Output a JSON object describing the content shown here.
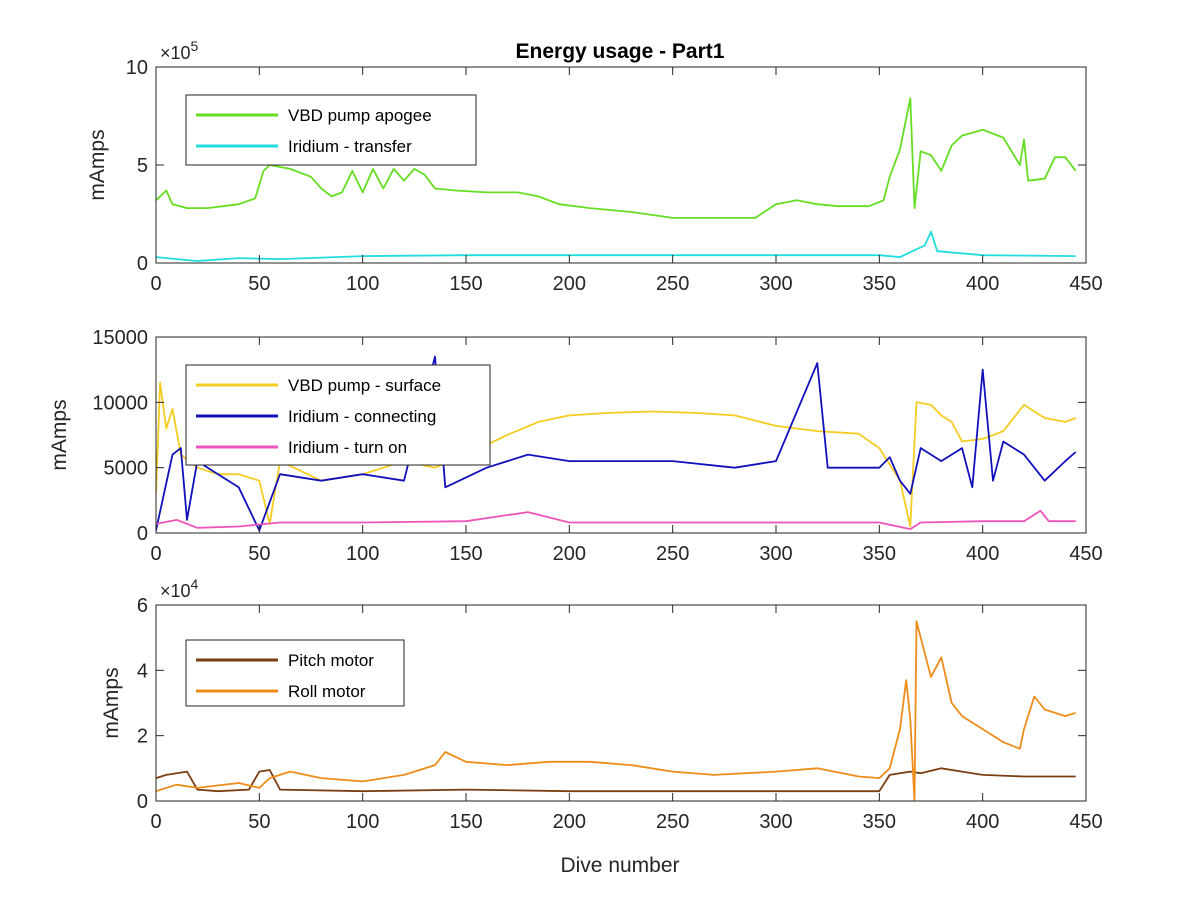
{
  "chart_data": [
    {
      "type": "line",
      "title": "Energy usage - Part1",
      "xlabel": "",
      "ylabel": "mAmps",
      "xlim": [
        0,
        450
      ],
      "ylim": [
        0,
        1000000
      ],
      "xticks": [
        0,
        50,
        100,
        150,
        200,
        250,
        300,
        350,
        400,
        450
      ],
      "yticks": [
        0,
        500000,
        1000000
      ],
      "ytick_labels": [
        "0",
        "5",
        "10"
      ],
      "exponent_label": "×10^5",
      "exponent_base": "×10",
      "exponent_power": "5",
      "legend_position": "top-left",
      "series": [
        {
          "name": "VBD pump apogee",
          "color": "#66dd22",
          "points": [
            [
              0,
              320000
            ],
            [
              5,
              370000
            ],
            [
              8,
              300000
            ],
            [
              15,
              280000
            ],
            [
              25,
              280000
            ],
            [
              40,
              300000
            ],
            [
              48,
              330000
            ],
            [
              52,
              470000
            ],
            [
              55,
              500000
            ],
            [
              65,
              480000
            ],
            [
              75,
              440000
            ],
            [
              80,
              380000
            ],
            [
              85,
              340000
            ],
            [
              90,
              360000
            ],
            [
              95,
              470000
            ],
            [
              100,
              360000
            ],
            [
              105,
              480000
            ],
            [
              110,
              380000
            ],
            [
              115,
              480000
            ],
            [
              120,
              420000
            ],
            [
              125,
              480000
            ],
            [
              130,
              450000
            ],
            [
              135,
              380000
            ],
            [
              145,
              370000
            ],
            [
              160,
              360000
            ],
            [
              175,
              360000
            ],
            [
              185,
              340000
            ],
            [
              195,
              300000
            ],
            [
              210,
              280000
            ],
            [
              230,
              260000
            ],
            [
              250,
              230000
            ],
            [
              270,
              230000
            ],
            [
              290,
              230000
            ],
            [
              300,
              300000
            ],
            [
              310,
              320000
            ],
            [
              320,
              300000
            ],
            [
              330,
              290000
            ],
            [
              345,
              290000
            ],
            [
              352,
              320000
            ],
            [
              355,
              440000
            ],
            [
              360,
              580000
            ],
            [
              365,
              840000
            ],
            [
              367,
              280000
            ],
            [
              370,
              570000
            ],
            [
              375,
              550000
            ],
            [
              380,
              470000
            ],
            [
              385,
              600000
            ],
            [
              390,
              650000
            ],
            [
              400,
              680000
            ],
            [
              410,
              640000
            ],
            [
              418,
              500000
            ],
            [
              420,
              630000
            ],
            [
              422,
              420000
            ],
            [
              430,
              430000
            ],
            [
              435,
              540000
            ],
            [
              440,
              540000
            ],
            [
              445,
              470000
            ]
          ]
        },
        {
          "name": "Iridium - transfer",
          "color": "#22dddd",
          "points": [
            [
              0,
              30000
            ],
            [
              10,
              20000
            ],
            [
              20,
              10000
            ],
            [
              40,
              25000
            ],
            [
              60,
              20000
            ],
            [
              100,
              35000
            ],
            [
              150,
              40000
            ],
            [
              200,
              40000
            ],
            [
              250,
              40000
            ],
            [
              300,
              40000
            ],
            [
              350,
              40000
            ],
            [
              360,
              30000
            ],
            [
              368,
              70000
            ],
            [
              372,
              90000
            ],
            [
              375,
              160000
            ],
            [
              378,
              60000
            ],
            [
              400,
              40000
            ],
            [
              445,
              35000
            ]
          ]
        }
      ]
    },
    {
      "type": "line",
      "title": "",
      "xlabel": "",
      "ylabel": "mAmps",
      "xlim": [
        0,
        450
      ],
      "ylim": [
        0,
        15000
      ],
      "xticks": [
        0,
        50,
        100,
        150,
        200,
        250,
        300,
        350,
        400,
        450
      ],
      "yticks": [
        0,
        5000,
        10000,
        15000
      ],
      "ytick_labels": [
        "0",
        "5000",
        "10000",
        "15000"
      ],
      "legend_position": "top-left",
      "series": [
        {
          "name": "VBD pump - surface",
          "color": "#f5cc22",
          "points": [
            [
              0,
              3000
            ],
            [
              2,
              11500
            ],
            [
              5,
              8000
            ],
            [
              8,
              9500
            ],
            [
              12,
              6000
            ],
            [
              20,
              5000
            ],
            [
              30,
              4500
            ],
            [
              40,
              4500
            ],
            [
              50,
              4000
            ],
            [
              55,
              700
            ],
            [
              60,
              5500
            ],
            [
              80,
              4000
            ],
            [
              100,
              4500
            ],
            [
              120,
              5500
            ],
            [
              135,
              5000
            ],
            [
              150,
              6000
            ],
            [
              170,
              7500
            ],
            [
              185,
              8500
            ],
            [
              200,
              9000
            ],
            [
              220,
              9200
            ],
            [
              240,
              9300
            ],
            [
              260,
              9200
            ],
            [
              280,
              9000
            ],
            [
              300,
              8200
            ],
            [
              320,
              7800
            ],
            [
              340,
              7600
            ],
            [
              350,
              6500
            ],
            [
              360,
              4000
            ],
            [
              365,
              500
            ],
            [
              368,
              10000
            ],
            [
              375,
              9800
            ],
            [
              380,
              9000
            ],
            [
              385,
              8500
            ],
            [
              390,
              7000
            ],
            [
              400,
              7200
            ],
            [
              410,
              7800
            ],
            [
              420,
              9800
            ],
            [
              430,
              8800
            ],
            [
              440,
              8500
            ],
            [
              445,
              8800
            ]
          ]
        },
        {
          "name": "Iridium - connecting",
          "color": "#1111bb",
          "points": [
            [
              0,
              200
            ],
            [
              8,
              6000
            ],
            [
              12,
              6500
            ],
            [
              15,
              1000
            ],
            [
              20,
              5500
            ],
            [
              30,
              4500
            ],
            [
              40,
              3500
            ],
            [
              50,
              200
            ],
            [
              60,
              4500
            ],
            [
              80,
              4000
            ],
            [
              100,
              4500
            ],
            [
              120,
              4000
            ],
            [
              135,
              13500
            ],
            [
              140,
              3500
            ],
            [
              160,
              5000
            ],
            [
              180,
              6000
            ],
            [
              200,
              5500
            ],
            [
              220,
              5500
            ],
            [
              250,
              5500
            ],
            [
              280,
              5000
            ],
            [
              300,
              5500
            ],
            [
              320,
              13000
            ],
            [
              325,
              5000
            ],
            [
              340,
              5000
            ],
            [
              350,
              5000
            ],
            [
              355,
              5800
            ],
            [
              360,
              4000
            ],
            [
              365,
              3000
            ],
            [
              370,
              6500
            ],
            [
              380,
              5500
            ],
            [
              390,
              6500
            ],
            [
              395,
              3500
            ],
            [
              400,
              12500
            ],
            [
              405,
              4000
            ],
            [
              410,
              7000
            ],
            [
              420,
              6000
            ],
            [
              430,
              4000
            ],
            [
              440,
              5500
            ],
            [
              445,
              6200
            ]
          ]
        },
        {
          "name": "Iridium - turn on",
          "color": "#ee55bb",
          "points": [
            [
              0,
              700
            ],
            [
              10,
              1000
            ],
            [
              20,
              400
            ],
            [
              40,
              500
            ],
            [
              60,
              800
            ],
            [
              100,
              800
            ],
            [
              150,
              900
            ],
            [
              180,
              1600
            ],
            [
              200,
              800
            ],
            [
              250,
              800
            ],
            [
              300,
              800
            ],
            [
              350,
              800
            ],
            [
              365,
              300
            ],
            [
              370,
              800
            ],
            [
              400,
              900
            ],
            [
              420,
              900
            ],
            [
              428,
              1700
            ],
            [
              432,
              900
            ],
            [
              445,
              900
            ]
          ]
        }
      ]
    },
    {
      "type": "line",
      "title": "",
      "xlabel": "Dive number",
      "ylabel": "mAmps",
      "xlim": [
        0,
        450
      ],
      "ylim": [
        0,
        60000
      ],
      "xticks": [
        0,
        50,
        100,
        150,
        200,
        250,
        300,
        350,
        400,
        450
      ],
      "yticks": [
        0,
        20000,
        40000,
        60000
      ],
      "ytick_labels": [
        "0",
        "2",
        "4",
        "6"
      ],
      "exponent_label": "×10^4",
      "exponent_base": "×10",
      "exponent_power": "4",
      "legend_position": "top-left",
      "series": [
        {
          "name": "Pitch motor",
          "color": "#7a3e12",
          "points": [
            [
              0,
              7000
            ],
            [
              5,
              8000
            ],
            [
              15,
              9000
            ],
            [
              20,
              3500
            ],
            [
              30,
              3000
            ],
            [
              45,
              3500
            ],
            [
              50,
              9000
            ],
            [
              55,
              9500
            ],
            [
              60,
              3500
            ],
            [
              100,
              3000
            ],
            [
              150,
              3500
            ],
            [
              200,
              3000
            ],
            [
              250,
              3000
            ],
            [
              300,
              3000
            ],
            [
              350,
              3000
            ],
            [
              355,
              8000
            ],
            [
              365,
              9000
            ],
            [
              370,
              8500
            ],
            [
              380,
              10000
            ],
            [
              390,
              9000
            ],
            [
              400,
              8000
            ],
            [
              420,
              7500
            ],
            [
              445,
              7500
            ]
          ]
        },
        {
          "name": "Roll motor",
          "color": "#ee8c1a",
          "points": [
            [
              0,
              3000
            ],
            [
              10,
              5000
            ],
            [
              20,
              4000
            ],
            [
              40,
              5500
            ],
            [
              50,
              4000
            ],
            [
              55,
              7000
            ],
            [
              65,
              9000
            ],
            [
              80,
              7000
            ],
            [
              100,
              6000
            ],
            [
              120,
              8000
            ],
            [
              135,
              11000
            ],
            [
              140,
              15000
            ],
            [
              150,
              12000
            ],
            [
              170,
              11000
            ],
            [
              190,
              12000
            ],
            [
              210,
              12000
            ],
            [
              230,
              11000
            ],
            [
              250,
              9000
            ],
            [
              270,
              8000
            ],
            [
              300,
              9000
            ],
            [
              320,
              10000
            ],
            [
              340,
              7500
            ],
            [
              350,
              7000
            ],
            [
              355,
              10000
            ],
            [
              360,
              22000
            ],
            [
              363,
              37000
            ],
            [
              365,
              25000
            ],
            [
              367,
              0
            ],
            [
              368,
              55000
            ],
            [
              370,
              50000
            ],
            [
              375,
              38000
            ],
            [
              380,
              44000
            ],
            [
              385,
              30000
            ],
            [
              390,
              26000
            ],
            [
              400,
              22000
            ],
            [
              410,
              18000
            ],
            [
              418,
              16000
            ],
            [
              420,
              22000
            ],
            [
              425,
              32000
            ],
            [
              430,
              28000
            ],
            [
              440,
              26000
            ],
            [
              445,
              27000
            ]
          ]
        }
      ]
    }
  ]
}
